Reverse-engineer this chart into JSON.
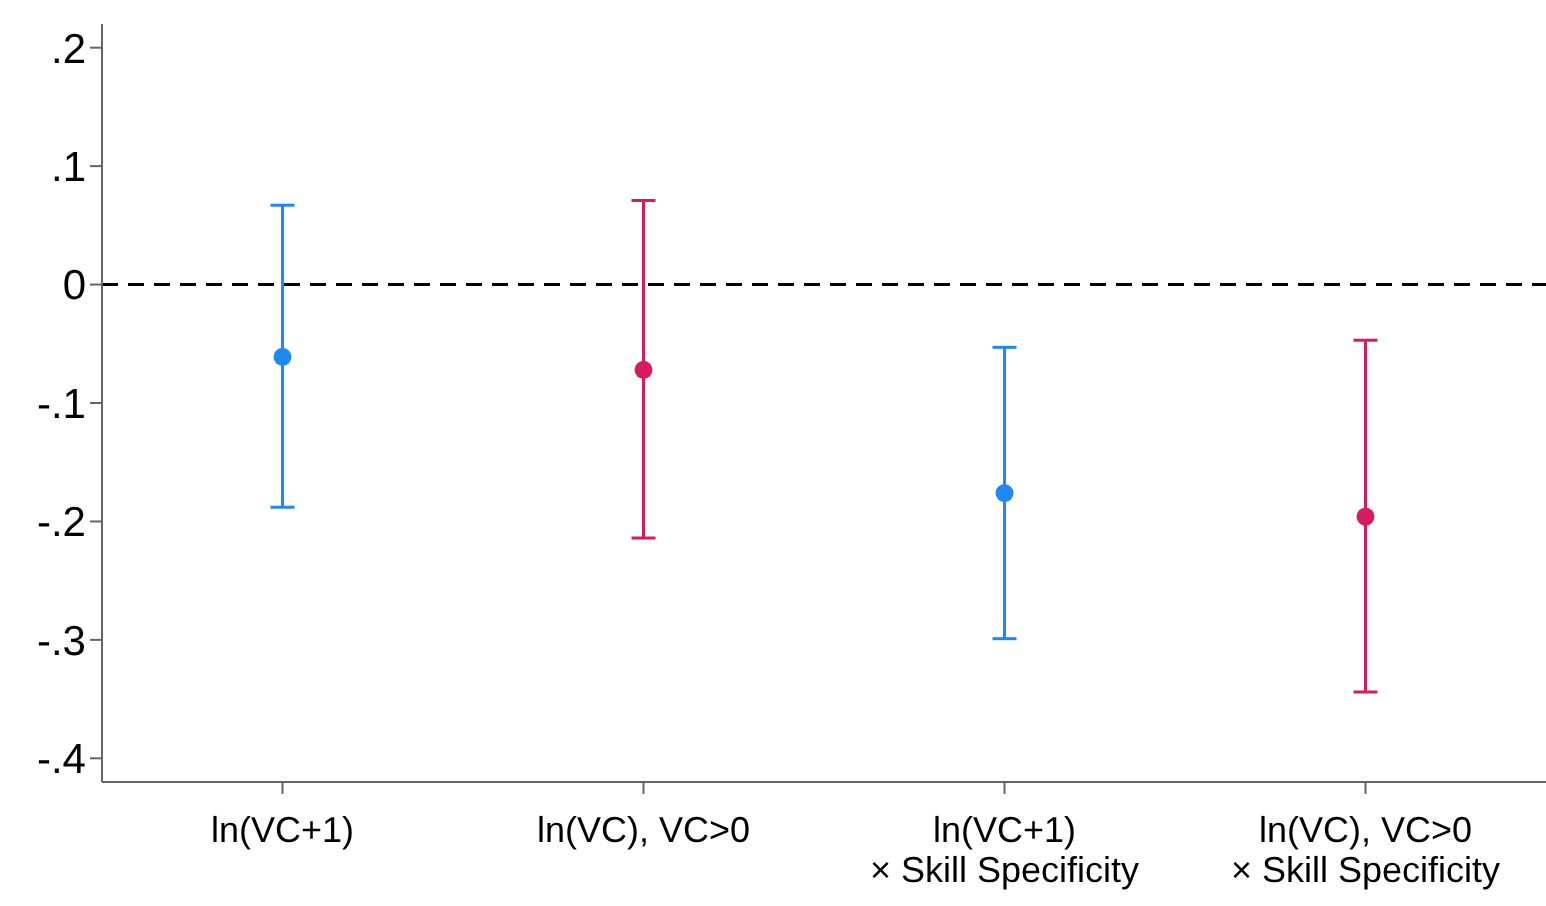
{
  "chart_data": {
    "type": "scatter",
    "categories": [
      "ln(VC+1)",
      "ln(VC), VC>0",
      "ln(VC+1)\n× Skill Specificity",
      "ln(VC), VC>0\n× Skill Specificity"
    ],
    "values": [
      -0.061,
      -0.072,
      -0.176,
      -0.196
    ],
    "errors": [
      [
        -0.188,
        0.067
      ],
      [
        -0.214,
        0.071
      ],
      [
        -0.299,
        -0.053
      ],
      [
        -0.344,
        -0.047
      ]
    ],
    "colors": [
      "#1e88f5",
      "#d81b5a",
      "#1e88f5",
      "#d81b5a"
    ],
    "ylim": [
      -0.42,
      0.22
    ],
    "yticks": [
      {
        "value": 0.2,
        "label": ".2"
      },
      {
        "value": 0.1,
        "label": ".1"
      },
      0,
      {
        "value": -0.1,
        "label": "-.1"
      },
      {
        "value": -0.2,
        "label": "-.2"
      },
      {
        "value": -0.3,
        "label": "-.3"
      },
      {
        "value": -0.4,
        "label": "-.4"
      }
    ],
    "ref_lines": [
      {
        "axis": "y",
        "value": 0,
        "label": null,
        "color": "#000000",
        "line_style": "dashed"
      }
    ],
    "marker": "circle",
    "grid": false,
    "legend": false
  }
}
